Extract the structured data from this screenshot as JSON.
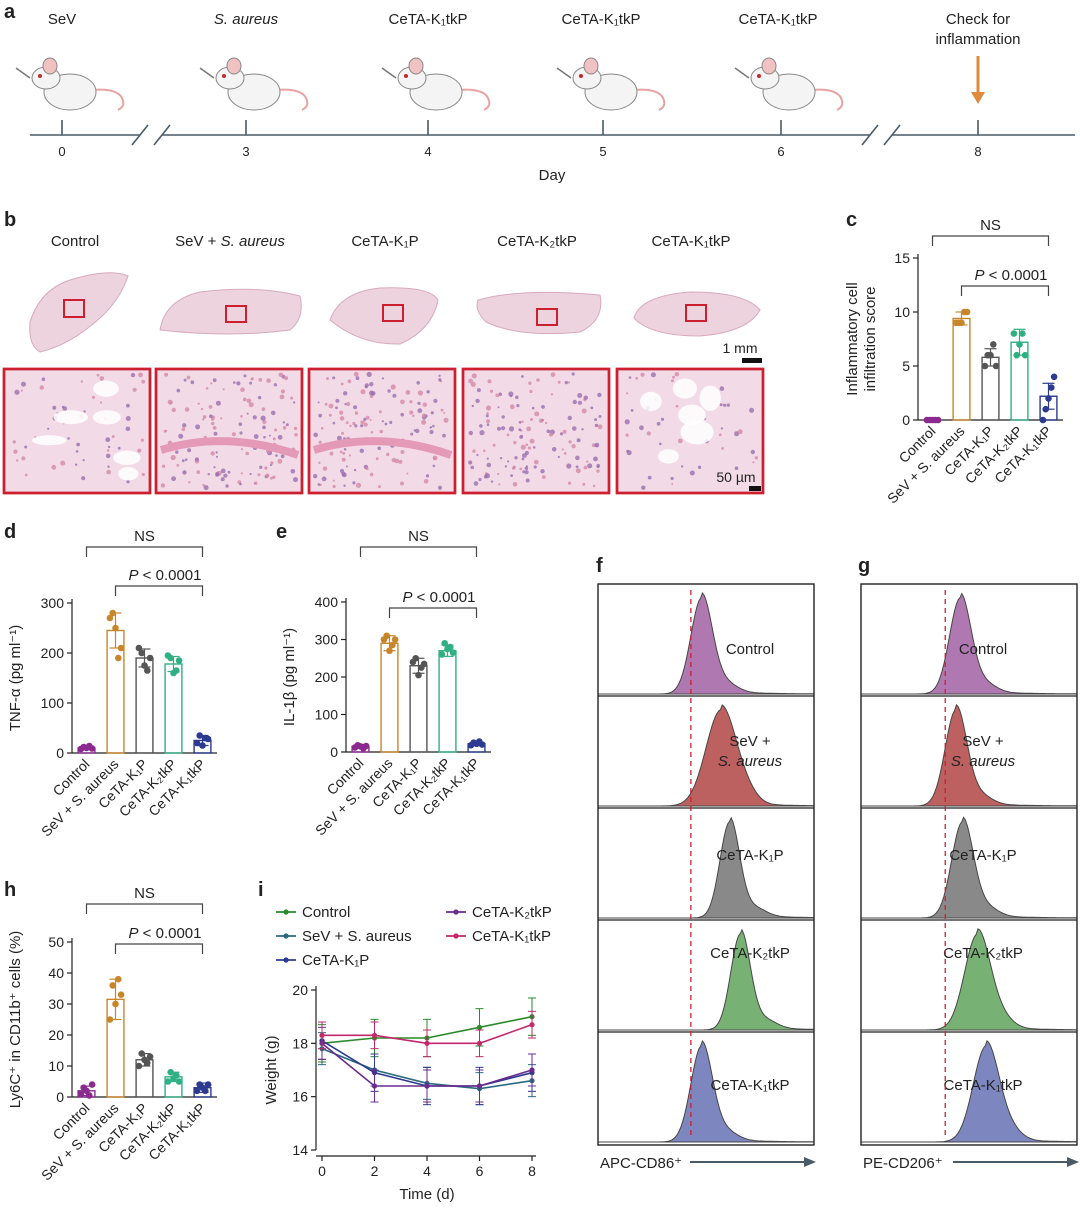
{
  "panel_letters": {
    "a": "a",
    "b": "b",
    "c": "c",
    "d": "d",
    "e": "e",
    "f": "f",
    "g": "g",
    "h": "h",
    "i": "i"
  },
  "panel_a": {
    "treatments": [
      {
        "day": 0,
        "label": "SeV",
        "italic": false
      },
      {
        "day": 3,
        "label": "S. aureus",
        "italic": true
      },
      {
        "day": 4,
        "label": "CeTA-K₁tkP",
        "italic": false
      },
      {
        "day": 5,
        "label": "CeTA-K₁tkP",
        "italic": false
      },
      {
        "day": 6,
        "label": "CeTA-K₁tkP",
        "italic": false
      }
    ],
    "check_label_1": "Check for",
    "check_label_2": "inflammation",
    "ticks": [
      "0",
      "3",
      "4",
      "5",
      "6",
      "8"
    ],
    "xlabel": "Day",
    "colors": {
      "arrow": "#e08a3c",
      "axis": "#4a5a66"
    }
  },
  "panel_b": {
    "groups": [
      {
        "label": "Control",
        "italic_part": ""
      },
      {
        "label": "SeV + ",
        "italic_part": "S. aureus"
      },
      {
        "label": "CeTA-K₁P",
        "italic_part": ""
      },
      {
        "label": "CeTA-K₂tkP",
        "italic_part": ""
      },
      {
        "label": "CeTA-K₁tkP",
        "italic_part": ""
      }
    ],
    "scale_top": "1 mm",
    "scale_bottom": "50 µm",
    "colors": {
      "frame": "#cc2030",
      "tissue": "#e8b9c8",
      "tissue_dark": "#c77fa3"
    }
  },
  "group_axis_labels": [
    "Control",
    "SeV + S. aureus",
    "CeTA-K₁P",
    "CeTA-K₂tkP",
    "CeTA-K₁tkP"
  ],
  "group_colors": [
    "#8a2a8f",
    "#c8862b",
    "#555555",
    "#2fb083",
    "#2c3a8f"
  ],
  "chart_data": [
    {
      "id": "c",
      "type": "bar",
      "ylabel_1": "Inflammatory cell",
      "ylabel_2": "infiltration score",
      "ylim": [
        0,
        15
      ],
      "yticks": [
        "0",
        "5",
        "10",
        "15"
      ],
      "categories": [
        "Control",
        "SeV + S. aureus",
        "CeTA-K₁P",
        "CeTA-K₂tkP",
        "CeTA-K₁tkP"
      ],
      "values": [
        0,
        9.4,
        5.8,
        7.2,
        2.2
      ],
      "errors": [
        0,
        0.6,
        0.8,
        1.2,
        1.2
      ],
      "points": [
        [
          0,
          0,
          0,
          0,
          0
        ],
        [
          9.0,
          9.0,
          9.0,
          10.0,
          10.0
        ],
        [
          5.0,
          6.0,
          6.0,
          7.0,
          5.0
        ],
        [
          8.0,
          6.0,
          7.0,
          8.0,
          6.0
        ],
        [
          0,
          1.0,
          2.0,
          3.0,
          4.0
        ]
      ],
      "annotation_ns": "NS",
      "annotation_p": "P < 0.0001"
    },
    {
      "id": "d",
      "type": "bar",
      "ylabel": "TNF-α (pg ml⁻¹)",
      "ylim": [
        0,
        300
      ],
      "yticks": [
        "0",
        "100",
        "200",
        "300"
      ],
      "categories": [
        "Control",
        "SeV + S. aureus",
        "CeTA-K₁P",
        "CeTA-K₂tkP",
        "CeTA-K₁tkP"
      ],
      "values": [
        10,
        245,
        190,
        178,
        25
      ],
      "errors": [
        3,
        35,
        18,
        15,
        10
      ],
      "points": [
        [
          8,
          12,
          10,
          14,
          9
        ],
        [
          270,
          280,
          250,
          190,
          210
        ],
        [
          210,
          200,
          175,
          165,
          190
        ],
        [
          195,
          190,
          160,
          165,
          185
        ],
        [
          20,
          35,
          15,
          30,
          28
        ]
      ],
      "annotation_ns": "NS",
      "annotation_p": "P < 0.0001"
    },
    {
      "id": "e",
      "type": "bar",
      "ylabel": "IL-1β (pg ml⁻¹)",
      "ylim": [
        0,
        400
      ],
      "yticks": [
        "0",
        "100",
        "200",
        "300",
        "400"
      ],
      "categories": [
        "Control",
        "SeV + S. aureus",
        "CeTA-K₁P",
        "CeTA-K₂tkP",
        "CeTA-K₁tkP"
      ],
      "values": [
        15,
        290,
        230,
        270,
        22
      ],
      "errors": [
        5,
        20,
        20,
        15,
        5
      ],
      "points": [
        [
          12,
          18,
          15,
          10,
          16
        ],
        [
          300,
          310,
          270,
          285,
          300
        ],
        [
          240,
          250,
          205,
          225,
          235
        ],
        [
          260,
          290,
          275,
          280,
          265
        ],
        [
          18,
          25,
          22,
          28,
          20
        ]
      ],
      "annotation_ns": "NS",
      "annotation_p": "P < 0.0001"
    },
    {
      "id": "h",
      "type": "bar",
      "ylabel": "Ly6C⁺ in CD11b⁺ cells (%)",
      "ylim": [
        0,
        50
      ],
      "yticks": [
        "0",
        "10",
        "20",
        "30",
        "40",
        "50"
      ],
      "categories": [
        "Control",
        "SeV + S. aureus",
        "CeTA-K₁P",
        "CeTA-K₂tkP",
        "CeTA-K₁tkP"
      ],
      "values": [
        2,
        31.5,
        12,
        6.5,
        3
      ],
      "errors": [
        1.5,
        6.5,
        2,
        1.5,
        1.5
      ],
      "points": [
        [
          1,
          3,
          2,
          0.5,
          4
        ],
        [
          25,
          36,
          30,
          38,
          33
        ],
        [
          10,
          14,
          12,
          11,
          13
        ],
        [
          5,
          8,
          6,
          7,
          5
        ],
        [
          2,
          4,
          3,
          2,
          4
        ]
      ],
      "annotation_ns": "NS",
      "annotation_p": "P < 0.0001"
    },
    {
      "id": "i",
      "type": "line",
      "xlabel": "Time (d)",
      "ylabel": "Weight (g)",
      "xlim": [
        0,
        8
      ],
      "ylim": [
        14,
        20
      ],
      "xticks": [
        "0",
        "2",
        "4",
        "6",
        "8"
      ],
      "yticks": [
        "14",
        "16",
        "18",
        "20"
      ],
      "x": [
        0,
        2,
        4,
        6,
        8
      ],
      "series": [
        {
          "name": "Control",
          "values": [
            18.0,
            18.2,
            18.2,
            18.6,
            19.0
          ],
          "error": 0.7
        },
        {
          "name": "SeV + S. aureus",
          "values": [
            17.8,
            17.0,
            16.5,
            16.3,
            16.6
          ],
          "error": 0.6
        },
        {
          "name": "CeTA-K₁P",
          "values": [
            18.1,
            16.9,
            16.4,
            16.4,
            16.9
          ],
          "error": 0.7
        },
        {
          "name": "CeTA-K₂tkP",
          "values": [
            18.0,
            16.4,
            16.4,
            16.4,
            17.0
          ],
          "error": 0.6
        },
        {
          "name": "CeTA-K₁tkP",
          "values": [
            18.3,
            18.3,
            18.0,
            18.0,
            18.7
          ],
          "error": 0.5
        }
      ],
      "colors": [
        "#2a8a2a",
        "#2a6a80",
        "#2c3a8f",
        "#6b2a8f",
        "#c2286b"
      ]
    },
    {
      "id": "f",
      "type": "area",
      "xlabel": "APC-CD86⁺",
      "tracks": [
        {
          "label": "Control",
          "label_2": "",
          "peak": 0.48,
          "width": 0.05
        },
        {
          "label": "SeV +",
          "label_2": "S. aureus",
          "peak": 0.57,
          "width": 0.07
        },
        {
          "label": "CeTA-K₁P",
          "label_2": "",
          "peak": 0.61,
          "width": 0.045
        },
        {
          "label": "CeTA-K₂tkP",
          "label_2": "",
          "peak": 0.66,
          "width": 0.045
        },
        {
          "label": "CeTA-K₁tkP",
          "label_2": "",
          "peak": 0.48,
          "width": 0.05
        }
      ],
      "colors": [
        "#a76aa9",
        "#b5504f",
        "#7d7d7d",
        "#6aa966",
        "#6f7ab8"
      ]
    },
    {
      "id": "g",
      "type": "area",
      "xlabel": "PE-CD206⁺",
      "tracks": [
        {
          "label": "Control",
          "label_2": "",
          "peak": 0.46,
          "width": 0.05
        },
        {
          "label": "SeV +",
          "label_2": "S. aureus",
          "peak": 0.44,
          "width": 0.05
        },
        {
          "label": "CeTA-K₁P",
          "label_2": "",
          "peak": 0.47,
          "width": 0.05
        },
        {
          "label": "CeTA-K₂tkP",
          "label_2": "",
          "peak": 0.54,
          "width": 0.06
        },
        {
          "label": "CeTA-K₁tkP",
          "label_2": "",
          "peak": 0.58,
          "width": 0.06
        }
      ],
      "colors": [
        "#a76aa9",
        "#b5504f",
        "#7d7d7d",
        "#6aa966",
        "#6f7ab8"
      ]
    }
  ]
}
